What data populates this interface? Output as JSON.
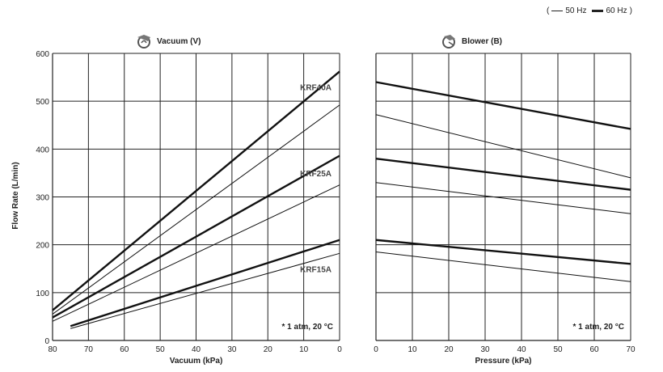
{
  "legend": {
    "open": "(",
    "label_50hz": "50 Hz",
    "label_60hz": "60 Hz",
    "close": ")"
  },
  "y_axis_label": "Flow Rate (L/min)",
  "chart_data": [
    {
      "type": "line",
      "title": "Vacuum (V)",
      "icon": "vacuum-pump-icon",
      "xlabel": "Vacuum (kPa)",
      "ylabel": "Flow Rate (L/min)",
      "x_reversed": true,
      "xlim": [
        80,
        0
      ],
      "ylim": [
        0,
        600
      ],
      "xticks": [
        80,
        70,
        60,
        50,
        40,
        30,
        20,
        10,
        0
      ],
      "yticks": [
        0,
        100,
        200,
        300,
        400,
        500,
        600
      ],
      "grid": true,
      "note": "* 1 atm, 20 °C",
      "series": [
        {
          "label": "KRF40A",
          "freq": "60 Hz",
          "points": [
            [
              80,
              63
            ],
            [
              0,
              562
            ]
          ]
        },
        {
          "label": "KRF40A",
          "freq": "50 Hz",
          "points": [
            [
              80,
              55
            ],
            [
              0,
              492
            ]
          ]
        },
        {
          "label": "KRF25A",
          "freq": "60 Hz",
          "points": [
            [
              80,
              48
            ],
            [
              0,
              386
            ]
          ]
        },
        {
          "label": "KRF25A",
          "freq": "50 Hz",
          "points": [
            [
              80,
              40
            ],
            [
              0,
              325
            ]
          ]
        },
        {
          "label": "KRF15A",
          "freq": "60 Hz",
          "points": [
            [
              75,
              30
            ],
            [
              0,
              210
            ]
          ]
        },
        {
          "label": "KRF15A",
          "freq": "50 Hz",
          "points": [
            [
              75,
              25
            ],
            [
              0,
              182
            ]
          ]
        }
      ],
      "series_labels": [
        {
          "text": "KRF40A",
          "y": 530
        },
        {
          "text": "KRF25A",
          "y": 350
        },
        {
          "text": "KRF15A",
          "y": 150
        }
      ]
    },
    {
      "type": "line",
      "title": "Blower (B)",
      "icon": "blower-icon",
      "xlabel": "Pressure (kPa)",
      "ylabel": "Flow Rate (L/min)",
      "x_reversed": false,
      "xlim": [
        0,
        70
      ],
      "ylim": [
        0,
        600
      ],
      "xticks": [
        0,
        10,
        20,
        30,
        40,
        50,
        60,
        70
      ],
      "yticks": [
        0,
        100,
        200,
        300,
        400,
        500,
        600
      ],
      "grid": true,
      "note": "* 1 atm, 20 °C",
      "series": [
        {
          "label": "KRF40A",
          "freq": "60 Hz",
          "points": [
            [
              0,
              540
            ],
            [
              70,
              442
            ]
          ]
        },
        {
          "label": "KRF40A",
          "freq": "50 Hz",
          "points": [
            [
              0,
              472
            ],
            [
              70,
              340
            ]
          ]
        },
        {
          "label": "KRF25A",
          "freq": "60 Hz",
          "points": [
            [
              0,
              380
            ],
            [
              70,
              315
            ]
          ]
        },
        {
          "label": "KRF25A",
          "freq": "50 Hz",
          "points": [
            [
              0,
              330
            ],
            [
              70,
              265
            ]
          ]
        },
        {
          "label": "KRF15A",
          "freq": "60 Hz",
          "points": [
            [
              0,
              210
            ],
            [
              70,
              160
            ]
          ]
        },
        {
          "label": "KRF15A",
          "freq": "50 Hz",
          "points": [
            [
              0,
              185
            ],
            [
              70,
              123
            ]
          ]
        }
      ],
      "series_labels": []
    }
  ]
}
